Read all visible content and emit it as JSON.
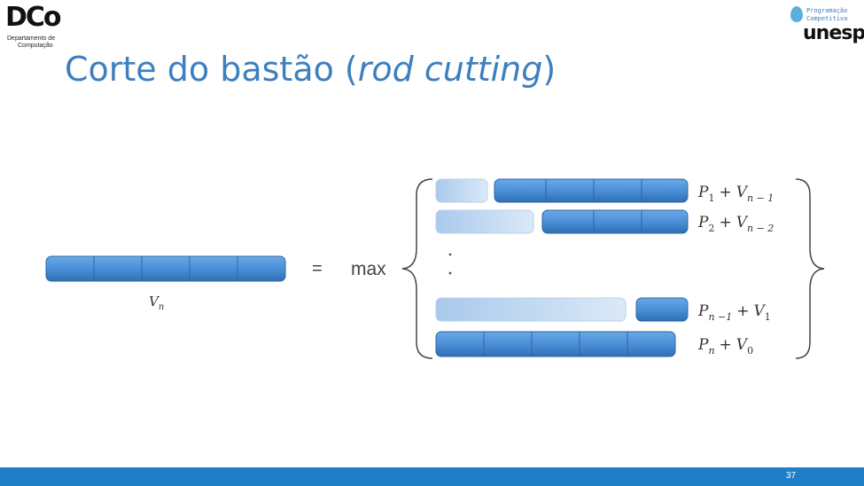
{
  "header": {
    "dco_logo": {
      "mark": "DCo",
      "subtitle_line1": "Departamento de",
      "subtitle_line2": "Computação"
    },
    "unesp_logo": {
      "line1": "Programação",
      "line2": "Competitiva",
      "name": "unesp"
    }
  },
  "slide": {
    "title_prefix": "Corte do bastão (",
    "title_italic": "rod cutting",
    "title_suffix": ")",
    "page_number": "37"
  },
  "figure": {
    "left_label": "V",
    "left_label_sub": "n",
    "equals": "=",
    "max_label": "max",
    "colors": {
      "rod": "#4a90d9",
      "rod_dark": "#3a74b8",
      "rod_faded": "#b9d4f0"
    },
    "rows": [
      {
        "p": "P",
        "p_sub": "1",
        "plus": "+",
        "v": "V",
        "v_sub": "n − 1"
      },
      {
        "p": "P",
        "p_sub": "2",
        "plus": "+",
        "v": "V",
        "v_sub": "n − 2"
      },
      {
        "p": "P",
        "p_sub": "n −1",
        "plus": "+",
        "v": "V",
        "v_sub": "1"
      },
      {
        "p": "P",
        "p_sub": "n",
        "plus": "+",
        "v": "V",
        "v_sub": "0"
      }
    ]
  }
}
